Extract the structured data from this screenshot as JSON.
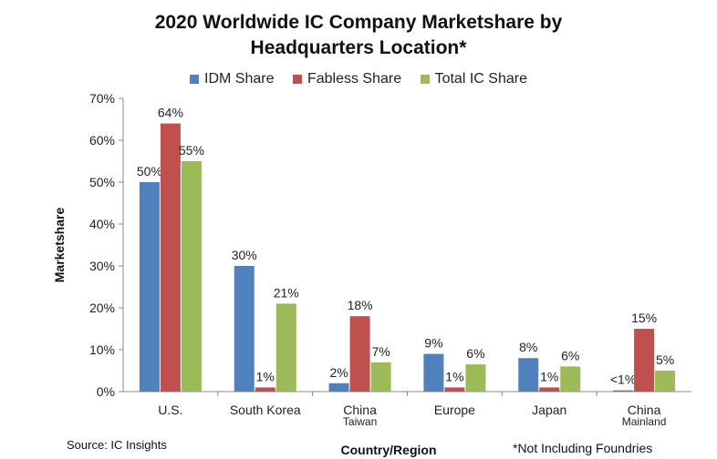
{
  "chart_data": {
    "type": "bar",
    "title_line1": "2020 Worldwide IC Company Marketshare by",
    "title_line2": "Headquarters Location*",
    "xlabel": "Country/Region",
    "ylabel": "Marketshare",
    "ylim": [
      0,
      70
    ],
    "yticks": [
      "0%",
      "10%",
      "20%",
      "30%",
      "40%",
      "50%",
      "60%",
      "70%"
    ],
    "categories": [
      [
        "U.S."
      ],
      [
        "South Korea"
      ],
      [
        "China",
        "Taiwan"
      ],
      [
        "Europe"
      ],
      [
        "Japan"
      ],
      [
        "China",
        "Mainland"
      ]
    ],
    "series": [
      {
        "name": "IDM Share",
        "color": "#4f81bd",
        "values": [
          50,
          30,
          2,
          9,
          8,
          0.3
        ],
        "labels": [
          "50%",
          "30%",
          "2%",
          "9%",
          "8%",
          "<1%"
        ]
      },
      {
        "name": "Fabless Share",
        "color": "#c0504d",
        "values": [
          64,
          1,
          18,
          1,
          1,
          15
        ],
        "labels": [
          "64%",
          "1%",
          "18%",
          "1%",
          "1%",
          "15%"
        ]
      },
      {
        "name": "Total IC Share",
        "color": "#9bbb59",
        "values": [
          55,
          21,
          7,
          6.5,
          6,
          5
        ],
        "labels": [
          "55%",
          "21%",
          "7%",
          "6%",
          "6%",
          "5%"
        ]
      }
    ],
    "grid": false,
    "legend_position": "top"
  },
  "footer": {
    "source": "Source: IC Insights",
    "note": "*Not Including Foundries"
  }
}
